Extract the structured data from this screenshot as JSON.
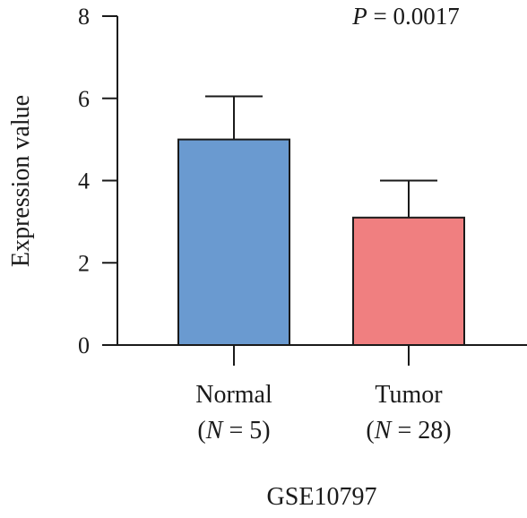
{
  "chart_data": {
    "type": "bar",
    "title": "GSE10797",
    "ylabel": "Expression value",
    "xlabel": "",
    "ylim": [
      0,
      8
    ],
    "yticks": [
      "0",
      "2",
      "4",
      "6",
      "8"
    ],
    "categories": [
      "Normal",
      "Tumor"
    ],
    "category_subtitles": [
      {
        "open": "(",
        "var": "N",
        "rest": " = 5)"
      },
      {
        "open": "(",
        "var": "N",
        "rest": " = 28)"
      }
    ],
    "values": [
      5.0,
      3.1
    ],
    "error_upper": [
      6.05,
      4.0
    ],
    "colors": [
      "#6a9ad0",
      "#f07f80"
    ],
    "annotation": {
      "var": "P",
      "rest": " = 0.0017"
    },
    "grid": false
  }
}
